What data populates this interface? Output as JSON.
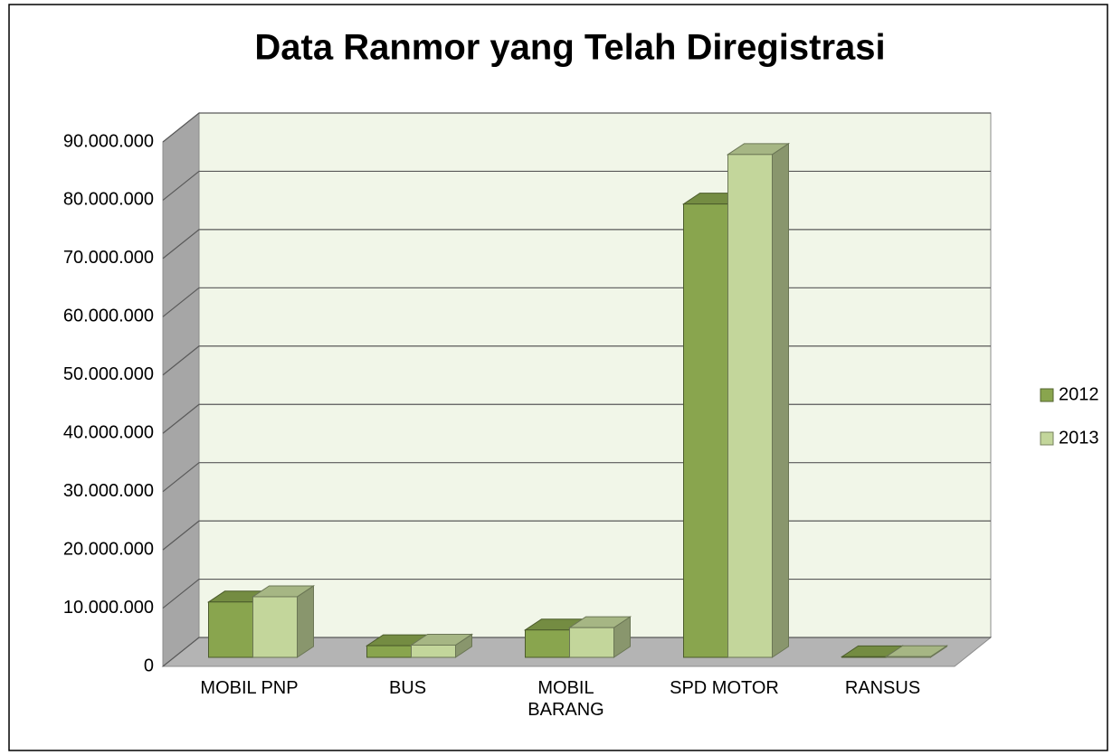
{
  "chart_data": {
    "type": "bar3d",
    "title": "Data Ranmor yang Telah Diregistrasi",
    "categories": [
      "MOBIL PNP",
      "BUS",
      "MOBIL\nBARANG",
      "SPD MOTOR",
      "RANSUS"
    ],
    "series": [
      {
        "name": "2012",
        "color": "#89a54e",
        "values": [
          9500000,
          2000000,
          4700000,
          77800000,
          100000
        ]
      },
      {
        "name": "2013",
        "color": "#c3d69b",
        "values": [
          10400000,
          2100000,
          5100000,
          86300000,
          120000
        ]
      }
    ],
    "ylim": [
      0,
      90000000
    ],
    "yticks": [
      0,
      {
        "value": 10000000,
        "label": "10.000.000"
      },
      {
        "value": 20000000,
        "label": "20.000.000"
      },
      {
        "value": 30000000,
        "label": "30.000.000"
      },
      {
        "value": 40000000,
        "label": "40.000.000"
      },
      {
        "value": 50000000,
        "label": "50.000.000"
      },
      {
        "value": 60000000,
        "label": "60.000.000"
      },
      {
        "value": 70000000,
        "label": "70.000.000"
      },
      {
        "value": 80000000,
        "label": "80.000.000"
      },
      {
        "value": 90000000,
        "label": "90.000.000"
      }
    ],
    "grid": true,
    "legend": "right"
  }
}
